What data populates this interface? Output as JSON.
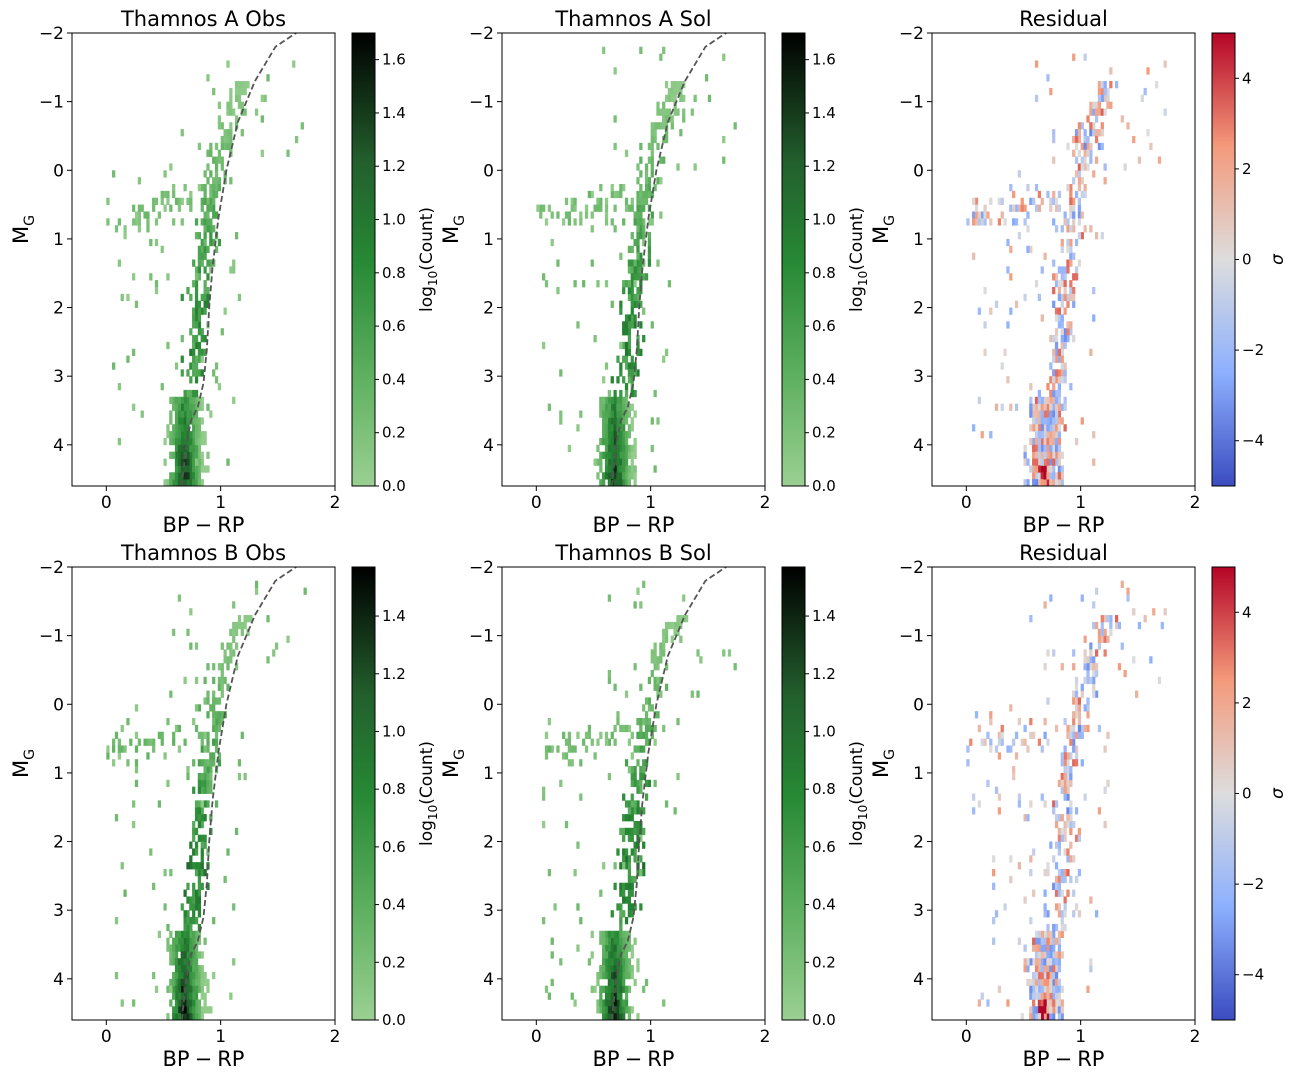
{
  "figure": {
    "panels": [
      {
        "id": "A-obs",
        "title": "Thamnos A Obs",
        "kind": "obs",
        "cmap": "greens",
        "vmax": 1.7,
        "seed": 11,
        "xlabel_main": "BP",
        "xlabel_minus": "−",
        "xlabel_end": "RP",
        "ylabel_main": "M",
        "ylabel_sub": "G"
      },
      {
        "id": "A-sol",
        "title": "Thamnos A Sol",
        "kind": "sol",
        "cmap": "greens",
        "vmax": 1.7,
        "seed": 23,
        "xlabel_main": "BP",
        "xlabel_minus": "−",
        "xlabel_end": "RP",
        "ylabel_main": "M",
        "ylabel_sub": "G"
      },
      {
        "id": "A-res",
        "title": "Residual",
        "kind": "res",
        "cmap": "coolwarm",
        "vmin": -5,
        "vmax": 5,
        "seed": 37,
        "xlabel_main": "BP",
        "xlabel_minus": "−",
        "xlabel_end": "RP",
        "ylabel_main": "M",
        "ylabel_sub": "G"
      },
      {
        "id": "B-obs",
        "title": "Thamnos B Obs",
        "kind": "obs",
        "cmap": "greens",
        "vmax": 1.57,
        "seed": 53,
        "xlabel_main": "BP",
        "xlabel_minus": "−",
        "xlabel_end": "RP",
        "ylabel_main": "M",
        "ylabel_sub": "G"
      },
      {
        "id": "B-sol",
        "title": "Thamnos B Sol",
        "kind": "sol",
        "cmap": "greens",
        "vmax": 1.57,
        "seed": 71,
        "xlabel_main": "BP",
        "xlabel_minus": "−",
        "xlabel_end": "RP",
        "ylabel_main": "M",
        "ylabel_sub": "G"
      },
      {
        "id": "B-res",
        "title": "Residual",
        "kind": "res",
        "cmap": "coolwarm",
        "vmin": -5,
        "vmax": 5,
        "seed": 89,
        "xlabel_main": "BP",
        "xlabel_minus": "−",
        "xlabel_end": "RP",
        "ylabel_main": "M",
        "ylabel_sub": "G"
      }
    ],
    "colorbars": [
      {
        "panel": "A-obs",
        "label_pre": "log",
        "label_sub": "10",
        "label_post": "(Count)",
        "ticks": [
          "0.0",
          "0.2",
          "0.4",
          "0.6",
          "0.8",
          "1.0",
          "1.2",
          "1.4",
          "1.6"
        ],
        "tick_values": [
          0,
          0.2,
          0.4,
          0.6,
          0.8,
          1.0,
          1.2,
          1.4,
          1.6
        ],
        "min": 0,
        "max": 1.7
      },
      {
        "panel": "A-sol",
        "label_pre": "log",
        "label_sub": "10",
        "label_post": "(Count)",
        "ticks": [
          "0.0",
          "0.2",
          "0.4",
          "0.6",
          "0.8",
          "1.0",
          "1.2",
          "1.4",
          "1.6"
        ],
        "tick_values": [
          0,
          0.2,
          0.4,
          0.6,
          0.8,
          1.0,
          1.2,
          1.4,
          1.6
        ],
        "min": 0,
        "max": 1.7
      },
      {
        "panel": "A-res",
        "label_pre": "σ",
        "label_sub": "",
        "label_post": "",
        "ticks": [
          "−4",
          "−2",
          "0",
          "2",
          "4"
        ],
        "tick_values": [
          -4,
          -2,
          0,
          2,
          4
        ],
        "min": -5,
        "max": 5
      },
      {
        "panel": "B-obs",
        "label_pre": "log",
        "label_sub": "10",
        "label_post": "(Count)",
        "ticks": [
          "0.0",
          "0.2",
          "0.4",
          "0.6",
          "0.8",
          "1.0",
          "1.2",
          "1.4"
        ],
        "tick_values": [
          0,
          0.2,
          0.4,
          0.6,
          0.8,
          1.0,
          1.2,
          1.4
        ],
        "min": 0,
        "max": 1.57
      },
      {
        "panel": "B-sol",
        "label_pre": "log",
        "label_sub": "10",
        "label_post": "(Count)",
        "ticks": [
          "0.0",
          "0.2",
          "0.4",
          "0.6",
          "0.8",
          "1.0",
          "1.2",
          "1.4"
        ],
        "tick_values": [
          0,
          0.2,
          0.4,
          0.6,
          0.8,
          1.0,
          1.2,
          1.4
        ],
        "min": 0,
        "max": 1.57
      },
      {
        "panel": "B-res",
        "label_pre": "σ",
        "label_sub": "",
        "label_post": "",
        "ticks": [
          "−4",
          "−2",
          "0",
          "2",
          "4"
        ],
        "tick_values": [
          -4,
          -2,
          0,
          2,
          4
        ],
        "min": -5,
        "max": 5
      }
    ]
  },
  "chart_data": [
    {
      "type": "heatmap",
      "title": "Thamnos A Obs",
      "xlabel": "BP − RP",
      "ylabel": "M_G",
      "xlim": [
        -0.3,
        2.0
      ],
      "ylim": [
        4.6,
        -2.0
      ],
      "xticks": [
        0,
        1,
        2
      ],
      "xtick_labels": [
        "0",
        "1",
        "2"
      ],
      "yticks": [
        -2,
        -1,
        0,
        1,
        2,
        3,
        4
      ],
      "ytick_labels": [
        "−2",
        "−1",
        "0",
        "1",
        "2",
        "3",
        "4"
      ],
      "bin_size": [
        0.025,
        0.1
      ],
      "colorbar": {
        "label": "log10(Count)",
        "range": [
          0,
          1.7
        ]
      },
      "isochrone": {
        "x": [
          0.66,
          0.7,
          0.74,
          0.8,
          0.85,
          0.88,
          0.9,
          0.93,
          0.98,
          1.05,
          1.15,
          1.3,
          1.48,
          1.66
        ],
        "y": [
          4.6,
          4.0,
          3.65,
          3.45,
          3.1,
          2.6,
          2.0,
          1.4,
          0.7,
          -0.0,
          -0.7,
          -1.3,
          -1.8,
          -2.0
        ],
        "style": "dashed"
      }
    },
    {
      "type": "heatmap",
      "title": "Thamnos A Sol",
      "xlabel": "BP − RP",
      "ylabel": "M_G",
      "xlim": [
        -0.3,
        2.0
      ],
      "ylim": [
        4.6,
        -2.0
      ],
      "xticks": [
        0,
        1,
        2
      ],
      "xtick_labels": [
        "0",
        "1",
        "2"
      ],
      "yticks": [
        -2,
        -1,
        0,
        1,
        2,
        3,
        4
      ],
      "ytick_labels": [
        "−2",
        "−1",
        "0",
        "1",
        "2",
        "3",
        "4"
      ],
      "bin_size": [
        0.025,
        0.1
      ],
      "colorbar": {
        "label": "log10(Count)",
        "range": [
          0,
          1.7
        ]
      },
      "isochrone": {
        "x": [
          0.66,
          0.7,
          0.74,
          0.8,
          0.85,
          0.88,
          0.9,
          0.93,
          0.98,
          1.05,
          1.15,
          1.3,
          1.48,
          1.66
        ],
        "y": [
          4.6,
          4.0,
          3.65,
          3.45,
          3.1,
          2.6,
          2.0,
          1.4,
          0.7,
          -0.0,
          -0.7,
          -1.3,
          -1.8,
          -2.0
        ],
        "style": "dashed"
      }
    },
    {
      "type": "heatmap",
      "title": "Residual",
      "xlabel": "BP − RP",
      "ylabel": "M_G",
      "xlim": [
        -0.3,
        2.0
      ],
      "ylim": [
        4.6,
        -2.0
      ],
      "xticks": [
        0,
        1,
        2
      ],
      "xtick_labels": [
        "0",
        "1",
        "2"
      ],
      "yticks": [
        -2,
        -1,
        0,
        1,
        2,
        3,
        4
      ],
      "ytick_labels": [
        "−2",
        "−1",
        "0",
        "1",
        "2",
        "3",
        "4"
      ],
      "colorbar": {
        "label": "σ",
        "range": [
          -5,
          5
        ]
      }
    },
    {
      "type": "heatmap",
      "title": "Thamnos B Obs",
      "xlabel": "BP − RP",
      "ylabel": "M_G",
      "xlim": [
        -0.3,
        2.0
      ],
      "ylim": [
        4.6,
        -2.0
      ],
      "xticks": [
        0,
        1,
        2
      ],
      "xtick_labels": [
        "0",
        "1",
        "2"
      ],
      "yticks": [
        -2,
        -1,
        0,
        1,
        2,
        3,
        4
      ],
      "ytick_labels": [
        "−2",
        "−1",
        "0",
        "1",
        "2",
        "3",
        "4"
      ],
      "bin_size": [
        0.025,
        0.1
      ],
      "colorbar": {
        "label": "log10(Count)",
        "range": [
          0,
          1.57
        ]
      },
      "isochrone": {
        "x": [
          0.66,
          0.7,
          0.74,
          0.8,
          0.85,
          0.88,
          0.9,
          0.93,
          0.98,
          1.05,
          1.15,
          1.3,
          1.48,
          1.66
        ],
        "y": [
          4.6,
          4.0,
          3.65,
          3.45,
          3.1,
          2.6,
          2.0,
          1.4,
          0.7,
          -0.0,
          -0.7,
          -1.3,
          -1.8,
          -2.0
        ],
        "style": "dashed"
      }
    },
    {
      "type": "heatmap",
      "title": "Thamnos B Sol",
      "xlabel": "BP − RP",
      "ylabel": "M_G",
      "xlim": [
        -0.3,
        2.0
      ],
      "ylim": [
        4.6,
        -2.0
      ],
      "xticks": [
        0,
        1,
        2
      ],
      "xtick_labels": [
        "0",
        "1",
        "2"
      ],
      "yticks": [
        -2,
        -1,
        0,
        1,
        2,
        3,
        4
      ],
      "ytick_labels": [
        "−2",
        "−1",
        "0",
        "1",
        "2",
        "3",
        "4"
      ],
      "bin_size": [
        0.025,
        0.1
      ],
      "colorbar": {
        "label": "log10(Count)",
        "range": [
          0,
          1.57
        ]
      },
      "isochrone": {
        "x": [
          0.66,
          0.7,
          0.74,
          0.8,
          0.85,
          0.88,
          0.9,
          0.93,
          0.98,
          1.05,
          1.15,
          1.3,
          1.48,
          1.66
        ],
        "y": [
          4.6,
          4.0,
          3.65,
          3.45,
          3.1,
          2.6,
          2.0,
          1.4,
          0.7,
          -0.0,
          -0.7,
          -1.3,
          -1.8,
          -2.0
        ],
        "style": "dashed"
      }
    },
    {
      "type": "heatmap",
      "title": "Residual",
      "xlabel": "BP − RP",
      "ylabel": "M_G",
      "xlim": [
        -0.3,
        2.0
      ],
      "ylim": [
        4.6,
        -2.0
      ],
      "xticks": [
        0,
        1,
        2
      ],
      "xtick_labels": [
        "0",
        "1",
        "2"
      ],
      "yticks": [
        -2,
        -1,
        0,
        1,
        2,
        3,
        4
      ],
      "ytick_labels": [
        "−2",
        "−1",
        "0",
        "1",
        "2",
        "3",
        "4"
      ],
      "colorbar": {
        "label": "σ",
        "range": [
          -5,
          5
        ]
      }
    }
  ]
}
